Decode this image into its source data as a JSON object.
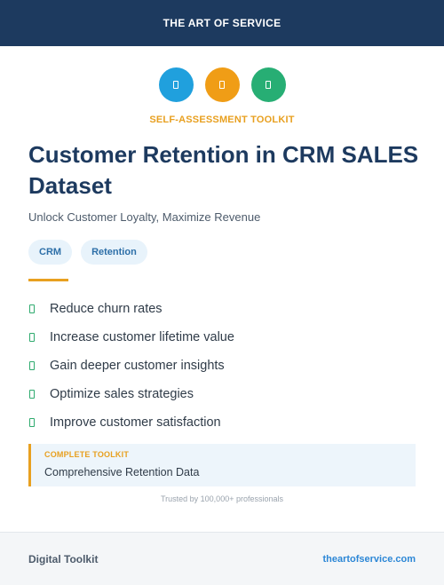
{
  "header": {
    "brand": "THE ART OF SERVICE"
  },
  "icons": [
    {
      "name": "document-icon",
      "color": "#20a0dd"
    },
    {
      "name": "document-icon",
      "color": "#f09d16"
    },
    {
      "name": "document-icon",
      "color": "#27ae74"
    }
  ],
  "eyebrow": "SELF-ASSESSMENT TOOLKIT",
  "title": "Customer Retention in CRM SALES Dataset",
  "subtitle": "Unlock Customer Loyalty, Maximize Revenue",
  "tags": [
    "CRM",
    "Retention"
  ],
  "benefits": [
    "Reduce churn rates",
    "Increase customer lifetime value",
    "Gain deeper customer insights",
    "Optimize sales strategies",
    "Improve customer satisfaction"
  ],
  "callout": {
    "label": "COMPLETE TOOLKIT",
    "text": "Comprehensive Retention Data"
  },
  "trusted": "Trusted by 100,000+ professionals",
  "footer": {
    "left": "Digital Toolkit",
    "right": "theartofservice.com"
  },
  "colors": {
    "navy": "#1d3a5f",
    "accent": "#e8a020",
    "check": "#2eaa6e",
    "link": "#2c87d6"
  }
}
